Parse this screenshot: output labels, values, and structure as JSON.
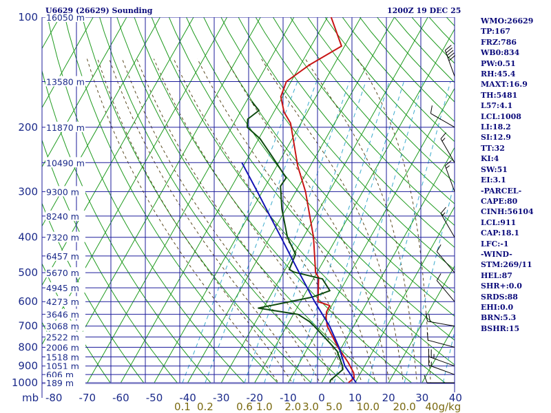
{
  "header": {
    "station": "U6629 (26629) Sounding",
    "time": "1200Z 19 DEC 25"
  },
  "indices": [
    "WMO:26629",
    "TP:167",
    "FRZ:786",
    "WB0:834",
    "PW:0.51",
    "RH:45.4",
    "MAXT:16.9",
    "TH:5481",
    "L57:4.1",
    "LCL:1008",
    "LI:18.2",
    "SI:12.9",
    "TT:32",
    "KI:4",
    "SW:51",
    "EI:3.1",
    "-PARCEL-",
    "CAPE:80",
    "CINH:56104",
    "LCL:911",
    "CAP:18.1",
    "LFC:-1",
    "-WIND-",
    "STM:269/11",
    "HEL:87",
    "SHR+:0.0",
    "SRDS:88",
    "EHI:0.0",
    "BRN:5.3",
    "BSHR:15"
  ],
  "colors": {
    "grid": "#1b1b9a",
    "dry_adiabat": "#1e9a1e",
    "moist_adiabat": "#5a4a20",
    "mixing_ratio": "#3aaacc",
    "temperature": "#c81414",
    "dewpoint": "#0e4a0e",
    "parcel": "#1414b4",
    "wind": "#000000"
  },
  "chart_data": {
    "type": "line",
    "title": "U6629 (26629) Sounding",
    "x_unit_label": "mb",
    "y_axis": "pressure (mb), log scale",
    "pressure_ticks": [
      100,
      200,
      300,
      400,
      500,
      600,
      700,
      800,
      900,
      1000
    ],
    "isotherm_ticks": [
      -80,
      -70,
      -60,
      -50,
      -40,
      -30,
      -20,
      -10,
      0,
      10,
      20,
      30,
      40
    ],
    "temp_tick_labels": [
      "-80",
      "-70",
      "-60",
      "-50",
      "-40",
      "-30",
      "-20",
      "-10",
      "0",
      "10",
      "20",
      "30",
      "40"
    ],
    "mixing_ratio_labels": [
      "0.1",
      "0.2",
      "0.6",
      "1.0",
      "2.0",
      "3.0",
      "5.0",
      "10.0",
      "20.0",
      "40g/kg"
    ],
    "mixing_ratio_values": [
      0.1,
      0.2,
      0.6,
      1.0,
      2.0,
      3.0,
      5.0,
      10.0,
      20.0,
      40.0
    ],
    "height_labels": [
      {
        "p": 100,
        "label": "16050 m"
      },
      {
        "p": 150,
        "label": "13580 m"
      },
      {
        "p": 200,
        "label": "11870 m"
      },
      {
        "p": 250,
        "label": "10490 m"
      },
      {
        "p": 300,
        "label": "9300 m"
      },
      {
        "p": 350,
        "label": "8240 m"
      },
      {
        "p": 400,
        "label": "7320 m"
      },
      {
        "p": 450,
        "label": "6457 m"
      },
      {
        "p": 500,
        "label": "5670 m"
      },
      {
        "p": 550,
        "label": "4945 m"
      },
      {
        "p": 600,
        "label": "4273 m"
      },
      {
        "p": 650,
        "label": "3646 m"
      },
      {
        "p": 700,
        "label": "3068 m"
      },
      {
        "p": 750,
        "label": "2522 m"
      },
      {
        "p": 800,
        "label": "2006 m"
      },
      {
        "p": 850,
        "label": "1518 m"
      },
      {
        "p": 900,
        "label": "1051 m"
      },
      {
        "p": 950,
        "label": "606 m"
      },
      {
        "p": 1000,
        "label": "189 m"
      }
    ],
    "series": [
      {
        "key": "temperature",
        "points": [
          {
            "p": 100,
            "t": -58.9
          },
          {
            "p": 120,
            "t": -50.9
          },
          {
            "p": 135,
            "t": -57.3
          },
          {
            "p": 150,
            "t": -61.4
          },
          {
            "p": 165,
            "t": -60.5
          },
          {
            "p": 182,
            "t": -56.9
          },
          {
            "p": 195,
            "t": -53.1
          },
          {
            "p": 255,
            "t": -43.8
          },
          {
            "p": 300,
            "t": -37.1
          },
          {
            "p": 400,
            "t": -27.0
          },
          {
            "p": 500,
            "t": -20.4
          },
          {
            "p": 515,
            "t": -18.7
          },
          {
            "p": 600,
            "t": -14.8
          },
          {
            "p": 615,
            "t": -10.6
          },
          {
            "p": 640,
            "t": -10.5
          },
          {
            "p": 665,
            "t": -9.6
          },
          {
            "p": 700,
            "t": -7.9
          },
          {
            "p": 800,
            "t": -1.1
          },
          {
            "p": 880,
            "t": 4.5
          },
          {
            "p": 940,
            "t": 7.9
          },
          {
            "p": 970,
            "t": 8.9
          },
          {
            "p": 1000,
            "t": 8.0
          }
        ]
      },
      {
        "key": "dewpoint",
        "points": [
          {
            "p": 170,
            "t": -68.4
          },
          {
            "p": 180,
            "t": -64.7
          },
          {
            "p": 190,
            "t": -66.6
          },
          {
            "p": 200,
            "t": -65.4
          },
          {
            "p": 215,
            "t": -59.6
          },
          {
            "p": 240,
            "t": -53.1
          },
          {
            "p": 275,
            "t": -45.2
          },
          {
            "p": 290,
            "t": -45.5
          },
          {
            "p": 335,
            "t": -41.2
          },
          {
            "p": 400,
            "t": -34.8
          },
          {
            "p": 445,
            "t": -29.5
          },
          {
            "p": 490,
            "t": -28.8
          },
          {
            "p": 498,
            "t": -27.0
          },
          {
            "p": 520,
            "t": -17.3
          },
          {
            "p": 560,
            "t": -13.1
          },
          {
            "p": 580,
            "t": -16.7
          },
          {
            "p": 585,
            "t": -17.9
          },
          {
            "p": 625,
            "t": -31.5
          },
          {
            "p": 650,
            "t": -18.6
          },
          {
            "p": 680,
            "t": -14.0
          },
          {
            "p": 700,
            "t": -11.8
          },
          {
            "p": 785,
            "t": -3.7
          },
          {
            "p": 820,
            "t": -0.7
          },
          {
            "p": 900,
            "t": 3.4
          },
          {
            "p": 920,
            "t": 4.1
          },
          {
            "p": 985,
            "t": 2.2
          },
          {
            "p": 1000,
            "t": 2.5
          }
        ]
      },
      {
        "key": "parcel",
        "points": [
          {
            "p": 250,
            "t": -61.0
          },
          {
            "p": 300,
            "t": -51.5
          },
          {
            "p": 400,
            "t": -36.7
          },
          {
            "p": 500,
            "t": -25.3
          },
          {
            "p": 600,
            "t": -15.8
          },
          {
            "p": 700,
            "t": -7.2
          },
          {
            "p": 800,
            "t": -0.8
          },
          {
            "p": 900,
            "t": 4.1
          },
          {
            "p": 1000,
            "t": 10.3
          }
        ]
      }
    ],
    "wind_barbs": [
      {
        "p": 145,
        "dir": 340,
        "speed_kt": 50
      },
      {
        "p": 200,
        "dir": 300,
        "speed_kt": 10
      },
      {
        "p": 250,
        "dir": 330,
        "speed_kt": 15
      },
      {
        "p": 300,
        "dir": 340,
        "speed_kt": 15
      },
      {
        "p": 400,
        "dir": 330,
        "speed_kt": 15
      },
      {
        "p": 500,
        "dir": 320,
        "speed_kt": 10
      },
      {
        "p": 600,
        "dir": 320,
        "speed_kt": 10
      },
      {
        "p": 700,
        "dir": 280,
        "speed_kt": 20
      },
      {
        "p": 800,
        "dir": 285,
        "speed_kt": 10
      },
      {
        "p": 900,
        "dir": 290,
        "speed_kt": 25
      },
      {
        "p": 950,
        "dir": 290,
        "speed_kt": 15
      },
      {
        "p": 1000,
        "dir": 270,
        "speed_kt": 10
      }
    ]
  }
}
